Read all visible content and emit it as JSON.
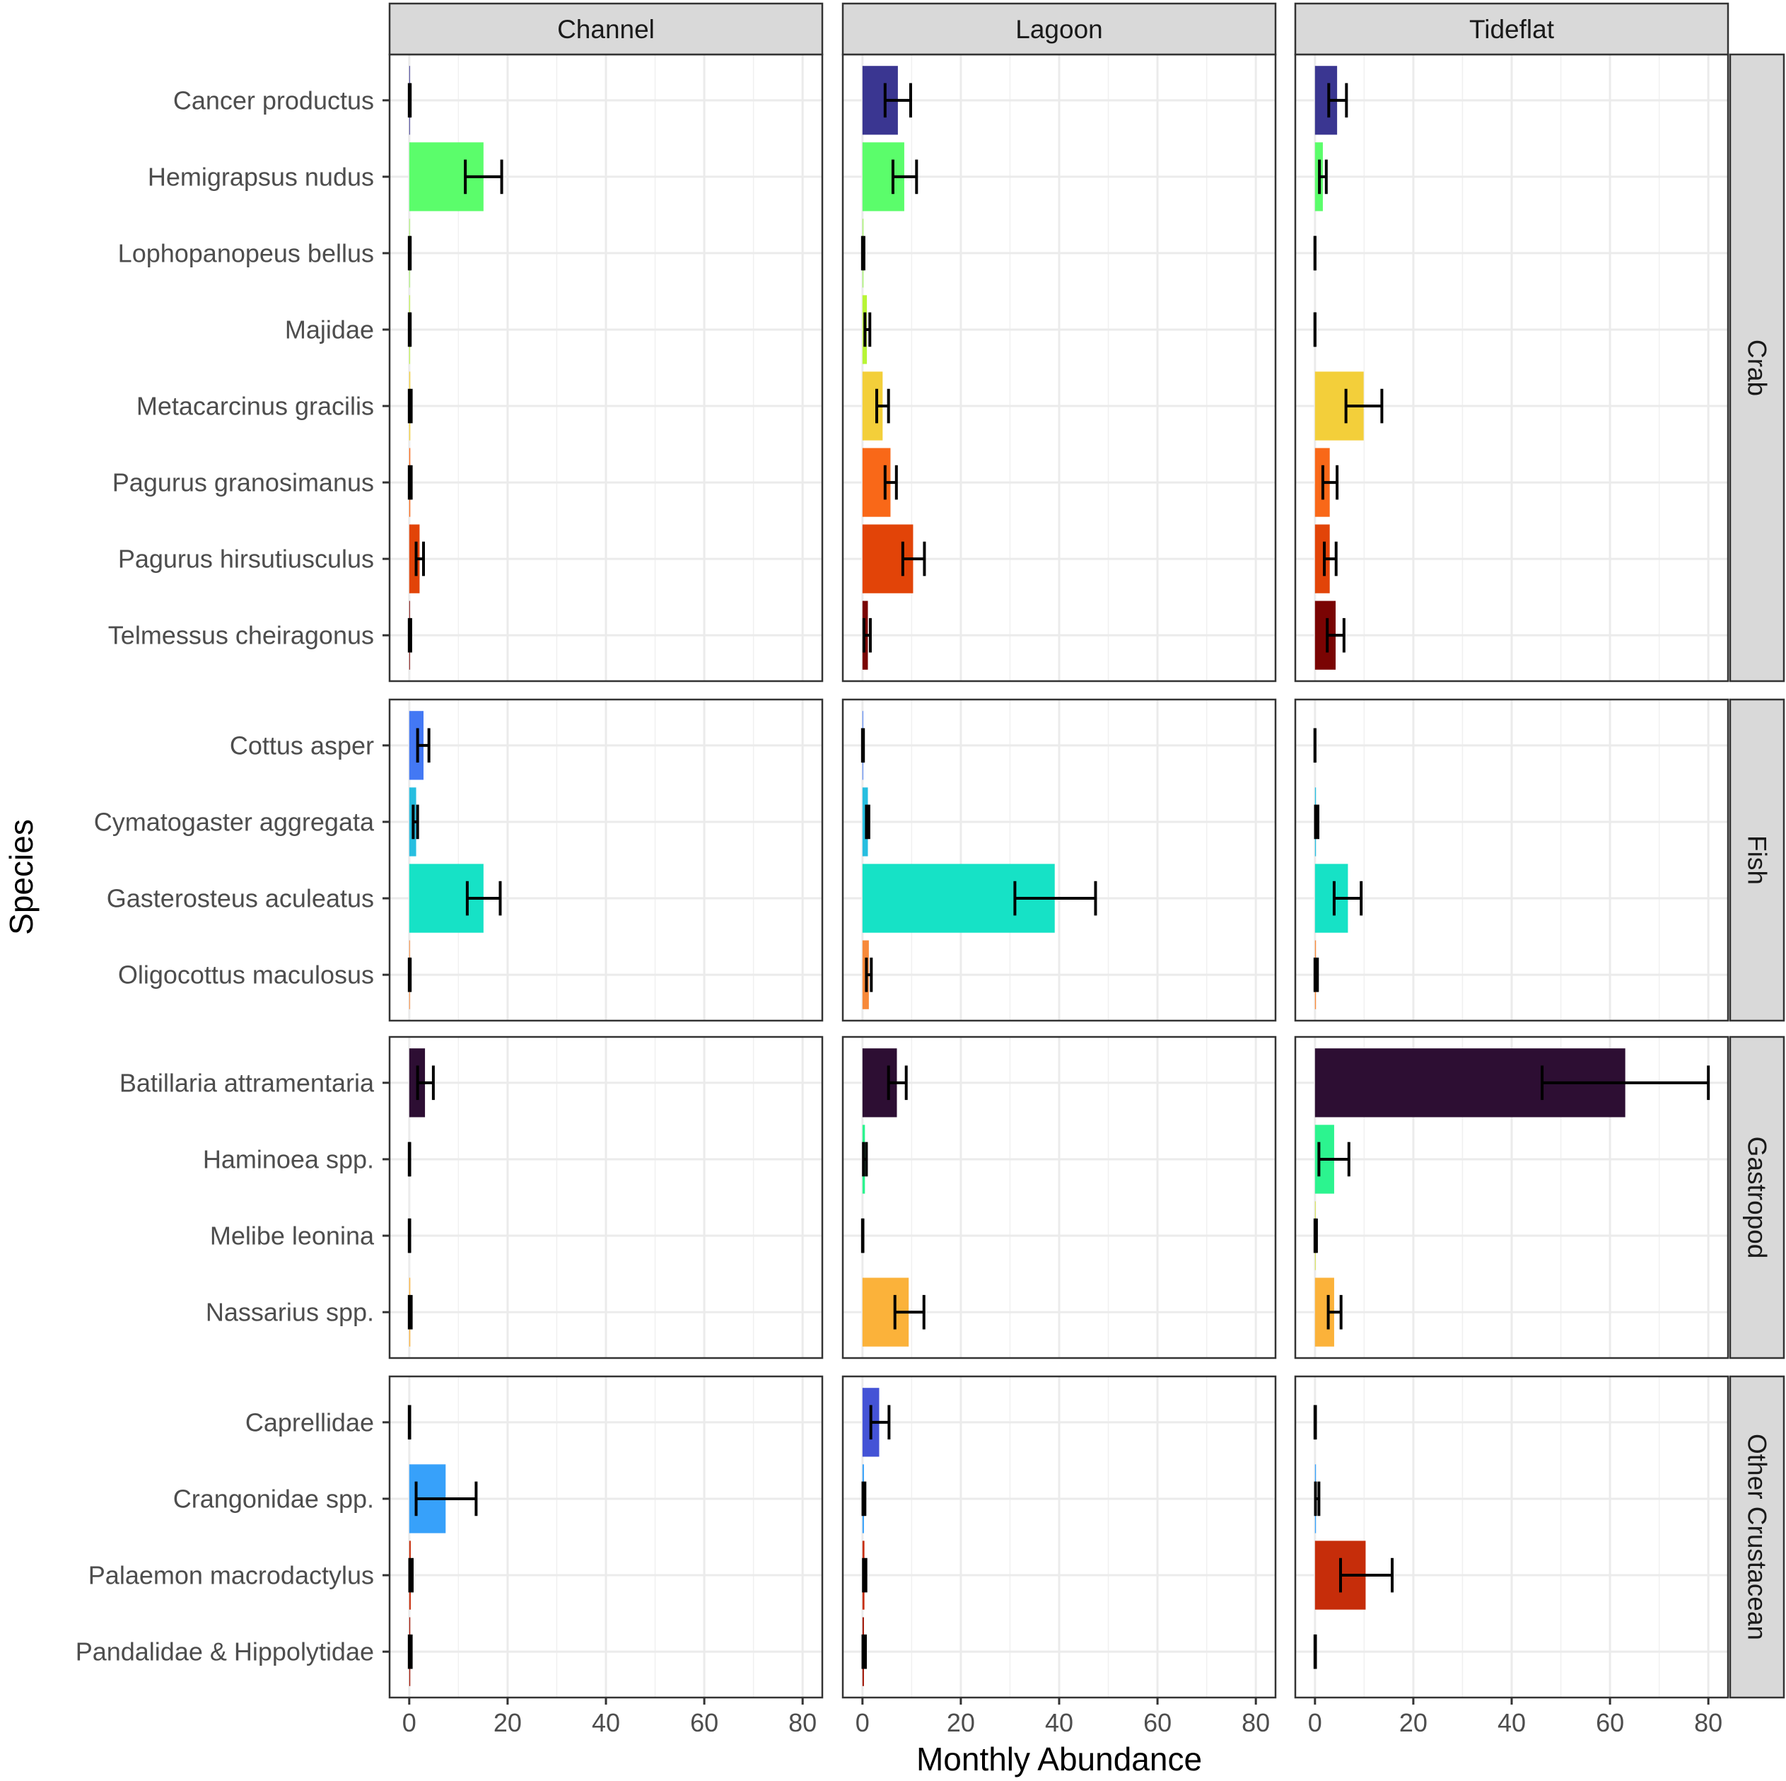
{
  "chart_data": {
    "type": "bar",
    "orientation": "horizontal",
    "xlabel": "Monthly Abundance",
    "ylabel": "Species",
    "xlim": [
      -4,
      84
    ],
    "xticks": [
      0,
      20,
      40,
      60,
      80
    ],
    "xtick_labels": [
      "0",
      "20",
      "40",
      "60",
      "80"
    ],
    "grid": true,
    "error_bars": true,
    "columns": [
      "Channel",
      "Lagoon",
      "Tideflat"
    ],
    "rows": [
      {
        "group": "Crab",
        "species": [
          {
            "name": "Cancer productus",
            "color": "#3a3691",
            "values": {
              "Channel": 0.1,
              "Lagoon": 7.2,
              "Tideflat": 4.5
            },
            "error": {
              "Channel": [
                0,
                0.2
              ],
              "Lagoon": [
                4.6,
                9.8
              ],
              "Tideflat": [
                2.8,
                6.4
              ]
            }
          },
          {
            "name": "Hemigrapsus nudus",
            "color": "#5bfd6b",
            "values": {
              "Channel": 15.1,
              "Lagoon": 8.5,
              "Tideflat": 1.6
            },
            "error": {
              "Channel": [
                11.4,
                18.8
              ],
              "Lagoon": [
                6.2,
                11.0
              ],
              "Tideflat": [
                0.9,
                2.3
              ]
            }
          },
          {
            "name": "Lophopanopeus bellus",
            "color": "#a4f46a",
            "values": {
              "Channel": 0.1,
              "Lagoon": 0.2,
              "Tideflat": 0
            },
            "error": {
              "Channel": [
                0,
                0.2
              ],
              "Lagoon": [
                0,
                0.3
              ],
              "Tideflat": [
                0,
                0
              ]
            }
          },
          {
            "name": "Majidae",
            "color": "#b8f535",
            "values": {
              "Channel": 0.1,
              "Lagoon": 0.9,
              "Tideflat": 0
            },
            "error": {
              "Channel": [
                0,
                0.2
              ],
              "Lagoon": [
                0.5,
                1.5
              ],
              "Tideflat": [
                0,
                0
              ]
            }
          },
          {
            "name": "Metacarcinus gracilis",
            "color": "#f3cf3a",
            "values": {
              "Channel": 0.2,
              "Lagoon": 4.1,
              "Tideflat": 9.9
            },
            "error": {
              "Channel": [
                0,
                0.4
              ],
              "Lagoon": [
                2.9,
                5.3
              ],
              "Tideflat": [
                6.3,
                13.6
              ]
            }
          },
          {
            "name": "Pagurus granosimanus",
            "color": "#f96818",
            "values": {
              "Channel": 0.2,
              "Lagoon": 5.7,
              "Tideflat": 3.0
            },
            "error": {
              "Channel": [
                0,
                0.4
              ],
              "Lagoon": [
                4.6,
                6.9
              ],
              "Tideflat": [
                1.6,
                4.5
              ]
            }
          },
          {
            "name": "Pagurus hirsutiusculus",
            "color": "#e24408",
            "values": {
              "Channel": 2.1,
              "Lagoon": 10.3,
              "Tideflat": 3.0
            },
            "error": {
              "Channel": [
                1.4,
                2.9
              ],
              "Lagoon": [
                8.2,
                12.6
              ],
              "Tideflat": [
                1.9,
                4.3
              ]
            }
          },
          {
            "name": "Telmessus cheiragonus",
            "color": "#7a0403",
            "values": {
              "Channel": 0.1,
              "Lagoon": 1.1,
              "Tideflat": 4.2
            },
            "error": {
              "Channel": [
                0,
                0.3
              ],
              "Lagoon": [
                0.3,
                1.6
              ],
              "Tideflat": [
                2.5,
                5.9
              ]
            }
          }
        ]
      },
      {
        "group": "Fish",
        "species": [
          {
            "name": "Cottus asper",
            "color": "#4378f4",
            "values": {
              "Channel": 2.9,
              "Lagoon": 0.1,
              "Tideflat": 0
            },
            "error": {
              "Channel": [
                1.7,
                4.0
              ],
              "Lagoon": [
                0,
                0.2
              ],
              "Tideflat": [
                0,
                0
              ]
            }
          },
          {
            "name": "Cymatogaster aggregata",
            "color": "#27bee0",
            "values": {
              "Channel": 1.4,
              "Lagoon": 1.1,
              "Tideflat": 0.2
            },
            "error": {
              "Channel": [
                0.8,
                1.7
              ],
              "Lagoon": [
                0.8,
                1.3
              ],
              "Tideflat": [
                0.1,
                0.6
              ]
            }
          },
          {
            "name": "Gasterosteus aculeatus",
            "color": "#16e2c6",
            "values": {
              "Channel": 15.1,
              "Lagoon": 39.1,
              "Tideflat": 6.7
            },
            "error": {
              "Channel": [
                11.8,
                18.5
              ],
              "Lagoon": [
                31.0,
                47.4
              ],
              "Tideflat": [
                3.9,
                9.4
              ]
            }
          },
          {
            "name": "Oligocottus maculosus",
            "color": "#f7893a",
            "values": {
              "Channel": 0.1,
              "Lagoon": 1.3,
              "Tideflat": 0.2
            },
            "error": {
              "Channel": [
                0,
                0.2
              ],
              "Lagoon": [
                0.8,
                1.8
              ],
              "Tideflat": [
                0,
                0.5
              ]
            }
          }
        ]
      },
      {
        "group": "Gastropod",
        "species": [
          {
            "name": "Batillaria attramentaria",
            "color": "#2d0e33",
            "values": {
              "Channel": 3.2,
              "Lagoon": 7.0,
              "Tideflat": 63.1
            },
            "error": {
              "Channel": [
                1.7,
                4.9
              ],
              "Lagoon": [
                5.3,
                8.9
              ],
              "Tideflat": [
                46.2,
                80.0
              ]
            }
          },
          {
            "name": "Haminoea spp.",
            "color": "#2cf48f",
            "values": {
              "Channel": 0,
              "Lagoon": 0.5,
              "Tideflat": 3.9
            },
            "error": {
              "Channel": [
                0,
                0.1
              ],
              "Lagoon": [
                0.2,
                0.8
              ],
              "Tideflat": [
                0.8,
                6.9
              ]
            }
          },
          {
            "name": "Melibe leonina",
            "color": "#d5e14a",
            "values": {
              "Channel": 0,
              "Lagoon": 0,
              "Tideflat": 0.1
            },
            "error": {
              "Channel": [
                0,
                0.1
              ],
              "Lagoon": [
                0,
                0.1
              ],
              "Tideflat": [
                0,
                0.3
              ]
            }
          },
          {
            "name": "Nassarius spp.",
            "color": "#fbb23a",
            "values": {
              "Channel": 0.2,
              "Lagoon": 9.4,
              "Tideflat": 3.9
            },
            "error": {
              "Channel": [
                0,
                0.4
              ],
              "Lagoon": [
                6.6,
                12.5
              ],
              "Tideflat": [
                2.7,
                5.3
              ]
            }
          }
        ]
      },
      {
        "group": "Other Crustacean",
        "species": [
          {
            "name": "Caprellidae",
            "color": "#4453d6",
            "values": {
              "Channel": 0,
              "Lagoon": 3.4,
              "Tideflat": 0
            },
            "error": {
              "Channel": [
                0,
                0.1
              ],
              "Lagoon": [
                1.7,
                5.4
              ],
              "Tideflat": [
                0,
                0.1
              ]
            }
          },
          {
            "name": "Crangonidae spp.",
            "color": "#37a1fa",
            "values": {
              "Channel": 7.4,
              "Lagoon": 0.3,
              "Tideflat": 0.2
            },
            "error": {
              "Channel": [
                1.4,
                13.6
              ],
              "Lagoon": [
                0.1,
                0.5
              ],
              "Tideflat": [
                0.1,
                0.8
              ]
            }
          },
          {
            "name": "Palaemon macrodactylus",
            "color": "#c62d0a",
            "values": {
              "Channel": 0.3,
              "Lagoon": 0.4,
              "Tideflat": 10.3
            },
            "error": {
              "Channel": [
                0.1,
                0.6
              ],
              "Lagoon": [
                0.2,
                0.7
              ],
              "Tideflat": [
                5.2,
                15.7
              ]
            }
          },
          {
            "name": "Pandalidae & Hippolytidae",
            "color": "#a01506",
            "values": {
              "Channel": 0.2,
              "Lagoon": 0.3,
              "Tideflat": 0
            },
            "error": {
              "Channel": [
                0,
                0.4
              ],
              "Lagoon": [
                0.1,
                0.6
              ],
              "Tideflat": [
                0,
                0.1
              ]
            }
          }
        ]
      }
    ]
  }
}
